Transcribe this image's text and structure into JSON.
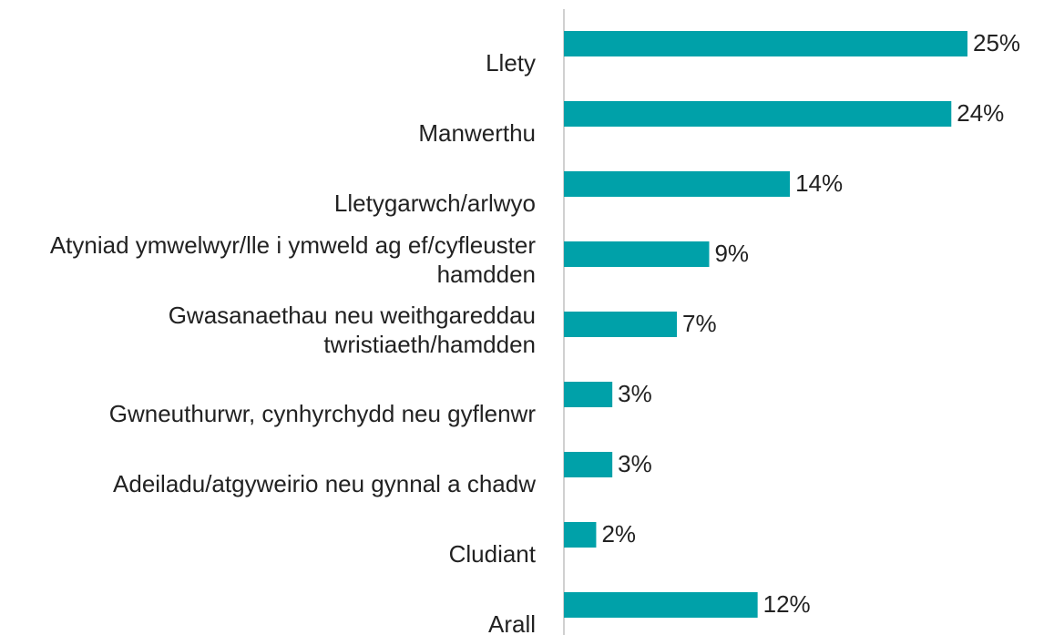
{
  "chart_data": {
    "type": "bar",
    "orientation": "horizontal",
    "categories": [
      "Llety",
      "Manwerthu",
      "Lletygarwch/arlwyo",
      "Atyniad ymwelwyr/lle i ymweld ag ef/cyfleuster hamdden",
      "Gwasanaethau neu weithgareddau twristiaeth/hamdden",
      "Gwneuthurwr, cynhyrchydd neu gyflenwr",
      "Adeiladu/atgyweirio neu gynnal a chadw",
      "Cludiant",
      "Arall"
    ],
    "values": [
      25,
      24,
      14,
      9,
      7,
      3,
      3,
      2,
      12
    ],
    "value_labels": [
      "25%",
      "24%",
      "14%",
      "9%",
      "7%",
      "3%",
      "3%",
      "2%",
      "12%"
    ],
    "color": "#00a1a9"
  }
}
